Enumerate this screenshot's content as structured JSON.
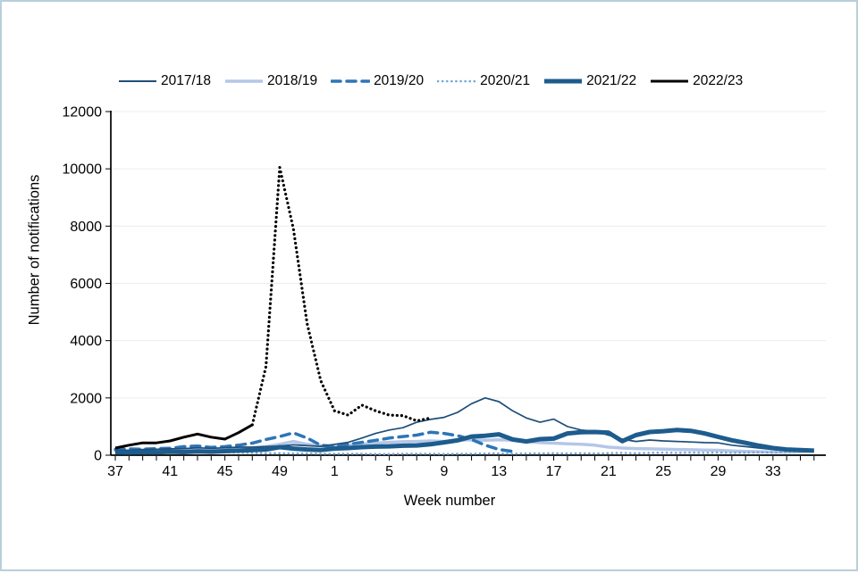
{
  "frame": {
    "border_color": "#b9cfda",
    "background": "#ffffff"
  },
  "chart_data": {
    "type": "line",
    "title": "",
    "xlabel": "Week number",
    "ylabel": "Number of notifications",
    "ylim": [
      0,
      12000
    ],
    "y_ticks": [
      0,
      2000,
      4000,
      6000,
      8000,
      10000,
      12000
    ],
    "grid": "horizontal-light",
    "legend_position": "top",
    "weeks": [
      37,
      38,
      39,
      40,
      41,
      42,
      43,
      44,
      45,
      46,
      47,
      48,
      49,
      50,
      51,
      52,
      1,
      2,
      3,
      4,
      5,
      6,
      7,
      8,
      9,
      10,
      11,
      12,
      13,
      14,
      15,
      16,
      17,
      18,
      19,
      20,
      21,
      22,
      23,
      24,
      25,
      26,
      27,
      28,
      29,
      30,
      31,
      32,
      33,
      34,
      35,
      36
    ],
    "x_tick_label_every": 4,
    "x_tick_labels": [
      "37",
      "41",
      "45",
      "49",
      "1",
      "5",
      "9",
      "13",
      "17",
      "21",
      "25",
      "29",
      "33"
    ],
    "axis_color": "#000000",
    "gridline_color": "#ececec",
    "series": [
      {
        "name": "2017/18",
        "color": "#1f4e79",
        "pattern": "solid",
        "width": 1.7,
        "values": [
          180,
          170,
          200,
          210,
          220,
          230,
          260,
          240,
          260,
          280,
          280,
          300,
          320,
          360,
          330,
          310,
          380,
          450,
          600,
          760,
          880,
          960,
          1150,
          1250,
          1320,
          1500,
          1800,
          2000,
          1870,
          1550,
          1300,
          1150,
          1260,
          1000,
          880,
          840,
          700,
          560,
          480,
          530,
          500,
          480,
          460,
          440,
          430,
          350,
          300,
          250,
          200,
          160,
          140,
          130
        ]
      },
      {
        "name": "2018/19",
        "color": "#b4c7e7",
        "pattern": "solid",
        "width": 3.5,
        "values": [
          150,
          140,
          160,
          170,
          180,
          200,
          210,
          200,
          220,
          240,
          260,
          300,
          380,
          480,
          380,
          330,
          330,
          350,
          380,
          420,
          450,
          470,
          480,
          500,
          480,
          520,
          540,
          520,
          540,
          520,
          480,
          440,
          420,
          400,
          380,
          350,
          280,
          250,
          230,
          220,
          210,
          200,
          190,
          180,
          170,
          150,
          130,
          120,
          110,
          110,
          120,
          160
        ]
      },
      {
        "name": "2019/20",
        "color": "#2e75b6",
        "pattern": "dashed",
        "width": 3.5,
        "values": [
          200,
          220,
          210,
          230,
          240,
          300,
          320,
          270,
          300,
          350,
          420,
          550,
          650,
          780,
          600,
          350,
          300,
          380,
          450,
          520,
          600,
          650,
          700,
          800,
          760,
          680,
          550,
          350,
          200,
          130,
          null,
          null,
          null,
          null,
          null,
          null,
          null,
          null,
          null,
          null,
          null,
          null,
          null,
          null,
          null,
          null,
          null,
          null,
          null,
          null,
          null,
          null
        ]
      },
      {
        "name": "2020/21",
        "color": "#74a7dc",
        "pattern": "dotted",
        "width": 2.6,
        "values": [
          150,
          160,
          170,
          160,
          150,
          140,
          130,
          120,
          100,
          90,
          80,
          70,
          70,
          60,
          60,
          50,
          50,
          50,
          50,
          40,
          40,
          50,
          50,
          50,
          40,
          50,
          50,
          60,
          60,
          50,
          60,
          60,
          70,
          60,
          70,
          60,
          70,
          80,
          70,
          80,
          90,
          80,
          90,
          80,
          90,
          80,
          90,
          100,
          90,
          110,
          130,
          160
        ]
      },
      {
        "name": "2021/22",
        "color": "#1d5c8d",
        "pattern": "solid",
        "width": 5,
        "values": [
          100,
          90,
          110,
          100,
          120,
          110,
          130,
          120,
          140,
          160,
          180,
          200,
          280,
          230,
          200,
          180,
          230,
          250,
          280,
          300,
          310,
          330,
          340,
          380,
          450,
          520,
          650,
          680,
          730,
          550,
          480,
          560,
          580,
          760,
          800,
          810,
          790,
          490,
          700,
          810,
          840,
          880,
          850,
          760,
          640,
          520,
          430,
          330,
          250,
          200,
          180,
          160
        ]
      },
      {
        "name": "2022/23",
        "color": "#000000",
        "pattern": "solid",
        "width": 3,
        "provisional_dotted_from_index": 10,
        "values": [
          250,
          350,
          430,
          430,
          500,
          630,
          740,
          630,
          560,
          790,
          1060,
          3100,
          10050,
          7900,
          4600,
          2600,
          1550,
          1400,
          1750,
          1550,
          1400,
          1380,
          1200,
          1300,
          null,
          null,
          null,
          null,
          null,
          null,
          null,
          null,
          null,
          null,
          null,
          null,
          null,
          null,
          null,
          null,
          null,
          null,
          null,
          null,
          null,
          null,
          null,
          null,
          null,
          null,
          null,
          null
        ]
      }
    ]
  }
}
